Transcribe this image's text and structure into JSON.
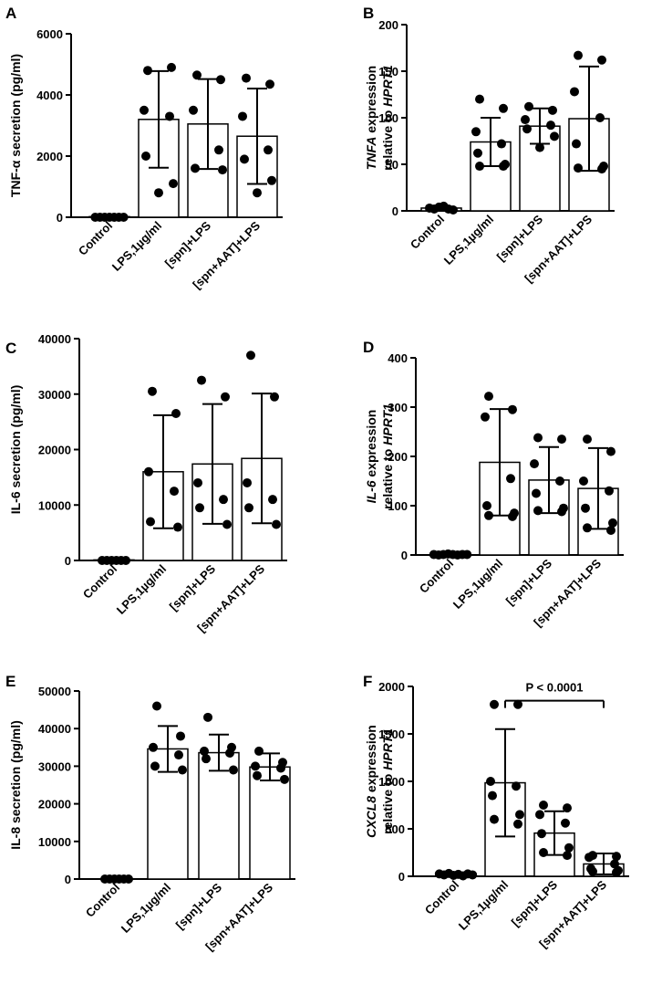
{
  "chart_data": [
    {
      "panel": "A",
      "type": "bar",
      "categories": [
        "Control",
        "LPS,1µg/ml",
        "[spn]+LPS",
        "[spn+AAT]+LPS"
      ],
      "ylabel_parts": [
        {
          "t": "TNF-α secretion (pg/ml)",
          "i": false
        }
      ],
      "ylim": [
        0,
        6000
      ],
      "yticks": [
        0,
        2000,
        4000,
        6000
      ],
      "means": [
        20,
        3200,
        3050,
        2650
      ],
      "sd": [
        0,
        1580,
        1470,
        1560
      ],
      "points": [
        [
          0,
          0,
          0,
          0,
          0,
          0,
          0
        ],
        [
          4800,
          4900,
          3500,
          3300,
          2000,
          1100,
          800
        ],
        [
          4650,
          4500,
          3500,
          2200,
          1600,
          1550
        ],
        [
          4550,
          4350,
          3300,
          2200,
          1900,
          1200,
          800
        ]
      ]
    },
    {
      "panel": "B",
      "type": "bar",
      "categories": [
        "Control",
        "LPS,1µg/ml",
        "[spn]+LPS",
        "[spn+AAT]+LPS"
      ],
      "ylabel_parts": [
        {
          "t": "TNFA",
          "i": true
        },
        {
          "t": " expression",
          "i": false
        }
      ],
      "ylabel2_parts": [
        {
          "t": "relative to ",
          "i": false
        },
        {
          "t": "HPRT1",
          "i": true
        }
      ],
      "ylim": [
        0,
        200
      ],
      "yticks": [
        0,
        50,
        100,
        150,
        200
      ],
      "means": [
        3,
        74,
        91,
        99
      ],
      "sd": [
        0,
        26,
        19,
        56
      ],
      "points": [
        [
          3,
          2,
          4,
          5,
          2,
          1
        ],
        [
          120,
          110,
          85,
          72,
          62,
          50,
          48,
          48
        ],
        [
          112,
          108,
          98,
          92,
          88,
          80,
          68
        ],
        [
          167,
          162,
          128,
          100,
          72,
          48,
          46,
          45
        ]
      ]
    },
    {
      "panel": "C",
      "type": "bar",
      "categories": [
        "Control",
        "LPS,1µg/ml",
        "[spn]+LPS",
        "[spn+AAT]+LPS"
      ],
      "ylabel_parts": [
        {
          "t": "IL-6 secretion (pg/ml)",
          "i": false
        }
      ],
      "ylim": [
        0,
        40000
      ],
      "yticks": [
        0,
        10000,
        20000,
        30000,
        40000
      ],
      "means": [
        100,
        16000,
        17400,
        18400
      ],
      "sd": [
        0,
        10200,
        10800,
        11700
      ],
      "points": [
        [
          0,
          0,
          0,
          0,
          0,
          0
        ],
        [
          30500,
          26500,
          16000,
          12500,
          7000,
          6000
        ],
        [
          32500,
          29500,
          14000,
          11000,
          9500,
          6500
        ],
        [
          37000,
          29500,
          14000,
          11000,
          9500,
          6500
        ]
      ]
    },
    {
      "panel": "D",
      "type": "bar",
      "categories": [
        "Control",
        "LPS,1µg/ml",
        "[spn]+LPS",
        "[spn+AAT]+LPS"
      ],
      "ylabel_parts": [
        {
          "t": "IL-6",
          "i": true
        },
        {
          "t": " expression",
          "i": false
        }
      ],
      "ylabel2_parts": [
        {
          "t": "relative to ",
          "i": false
        },
        {
          "t": "HPRT1",
          "i": true
        }
      ],
      "ylim": [
        0,
        400
      ],
      "yticks": [
        0,
        100,
        200,
        300,
        400
      ],
      "means": [
        1,
        188,
        152,
        135
      ],
      "sd": [
        0,
        108,
        67,
        82
      ],
      "points": [
        [
          1,
          0,
          1,
          2,
          1,
          0,
          1,
          1
        ],
        [
          322,
          295,
          280,
          155,
          100,
          85,
          80,
          78
        ],
        [
          238,
          235,
          185,
          150,
          125,
          95,
          90,
          88
        ],
        [
          235,
          210,
          150,
          130,
          95,
          65,
          55,
          50
        ]
      ]
    },
    {
      "panel": "E",
      "type": "bar",
      "categories": [
        "Control",
        "LPS,1µg/ml",
        "[spn]+LPS",
        "[spn+AAT]+LPS"
      ],
      "ylabel_parts": [
        {
          "t": "IL-8 secretion (pg/ml)",
          "i": false
        }
      ],
      "ylim": [
        0,
        50000
      ],
      "yticks": [
        0,
        10000,
        20000,
        30000,
        40000,
        50000
      ],
      "means": [
        50,
        34600,
        33600,
        29800
      ],
      "sd": [
        0,
        6100,
        4800,
        3600
      ],
      "points": [
        [
          0,
          0,
          0,
          0,
          0,
          0
        ],
        [
          46000,
          38000,
          35000,
          33000,
          30000,
          29000
        ],
        [
          43000,
          35000,
          34000,
          33500,
          32000,
          29000
        ],
        [
          34000,
          31000,
          30000,
          29500,
          27500,
          26500
        ]
      ]
    },
    {
      "panel": "F",
      "type": "bar",
      "categories": [
        "Control",
        "LPS,1µg/ml",
        "[spn]+LPS",
        "[spn+AAT]+LPS"
      ],
      "ylabel_parts": [
        {
          "t": "CXCL8",
          "i": true
        },
        {
          "t": " expression",
          "i": false
        }
      ],
      "ylabel2_parts": [
        {
          "t": "relative to ",
          "i": false
        },
        {
          "t": "HPRT1",
          "i": true
        }
      ],
      "ylim": [
        0,
        2000
      ],
      "yticks": [
        0,
        500,
        1000,
        1500,
        2000
      ],
      "means": [
        20,
        985,
        455,
        130
      ],
      "sd": [
        0,
        565,
        230,
        110
      ],
      "points": [
        [
          25,
          15,
          30,
          10,
          20,
          5,
          25,
          15
        ],
        [
          1810,
          1810,
          1000,
          950,
          850,
          650,
          600,
          550
        ],
        [
          750,
          720,
          650,
          560,
          450,
          300,
          250,
          220
        ],
        [
          220,
          210,
          200,
          130,
          80,
          60,
          50,
          40
        ]
      ],
      "significance": {
        "label": "P < 0.0001",
        "from": 1,
        "to": 3,
        "y": 1850
      }
    }
  ]
}
